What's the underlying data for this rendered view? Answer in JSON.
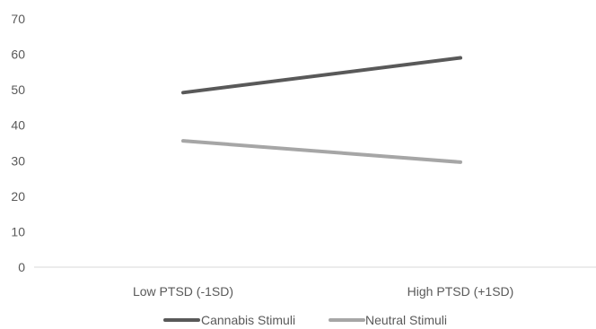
{
  "chart_data": {
    "type": "line",
    "categories": [
      "Low PTSD (-1SD)",
      "High PTSD (+1SD)"
    ],
    "series": [
      {
        "name": "Cannabis Stimuli",
        "values": [
          49.2,
          59.0
        ],
        "color": "#595959"
      },
      {
        "name": "Neutral Stimuli",
        "values": [
          35.6,
          29.6
        ],
        "color": "#a6a6a6"
      }
    ],
    "ylim": [
      0,
      70
    ],
    "yticks": [
      0,
      10,
      20,
      30,
      40,
      50,
      60,
      70
    ],
    "grid": false,
    "legend_position": "bottom",
    "axis_color": "#d9d9d9"
  }
}
